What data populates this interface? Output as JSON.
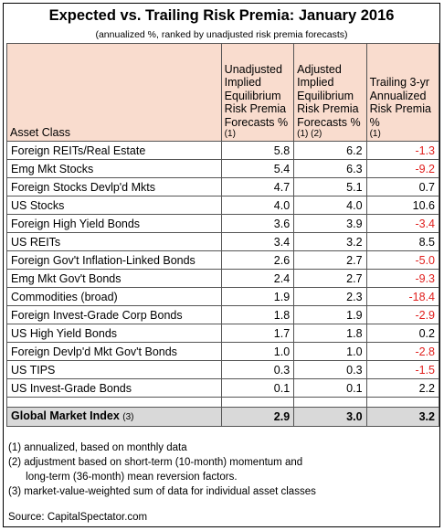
{
  "title": "Expected vs. Trailing Risk Premia: January 2016",
  "subtitle": "(annualized %, ranked by unadjusted risk premia forecasts)",
  "headers": {
    "asset_class": "Asset Class",
    "col1": "Unadjusted Implied Equilibrium Risk Premia Forecasts %",
    "col1_note": "(1)",
    "col2": "Adjusted Implied Equilibrium Risk Premia Forecasts %",
    "col2_note": "(1) (2)",
    "col3": "Trailing 3-yr Annualized Risk Premia %",
    "col3_note": "(1)"
  },
  "rows": [
    {
      "asset": "Foreign REITs/Real Estate",
      "unadj": "5.8",
      "adj": "6.2",
      "trailing": "-1.3"
    },
    {
      "asset": "Emg Mkt Stocks",
      "unadj": "5.4",
      "adj": "6.3",
      "trailing": "-9.2"
    },
    {
      "asset": "Foreign Stocks Devlp'd Mkts",
      "unadj": "4.7",
      "adj": "5.1",
      "trailing": "0.7"
    },
    {
      "asset": "US Stocks",
      "unadj": "4.0",
      "adj": "4.0",
      "trailing": "10.6"
    },
    {
      "asset": "Foreign High Yield Bonds",
      "unadj": "3.6",
      "adj": "3.9",
      "trailing": "-3.4"
    },
    {
      "asset": "US REITs",
      "unadj": "3.4",
      "adj": "3.2",
      "trailing": "8.5"
    },
    {
      "asset": "Foreign Gov't Inflation-Linked Bonds",
      "unadj": "2.6",
      "adj": "2.7",
      "trailing": "-5.0"
    },
    {
      "asset": "Emg Mkt Gov't Bonds",
      "unadj": "2.4",
      "adj": "2.7",
      "trailing": "-9.3"
    },
    {
      "asset": "Commodities (broad)",
      "unadj": "1.9",
      "adj": "2.3",
      "trailing": "-18.4"
    },
    {
      "asset": "Foreign Invest-Grade Corp Bonds",
      "unadj": "1.8",
      "adj": "1.9",
      "trailing": "-2.9"
    },
    {
      "asset": "US High Yield Bonds",
      "unadj": "1.7",
      "adj": "1.8",
      "trailing": "0.2"
    },
    {
      "asset": "Foreign Devlp'd Mkt Gov't Bonds",
      "unadj": "1.0",
      "adj": "1.0",
      "trailing": "-2.8"
    },
    {
      "asset": "US TIPS",
      "unadj": "0.3",
      "adj": "0.3",
      "trailing": "-1.5"
    },
    {
      "asset": "US Invest-Grade Bonds",
      "unadj": "0.1",
      "adj": "0.1",
      "trailing": "2.2"
    }
  ],
  "global": {
    "label": "Global Market Index",
    "note": "(3)",
    "unadj": "2.9",
    "adj": "3.0",
    "trailing": "3.2"
  },
  "notes": [
    "(1) annualized, based on monthly data",
    "(2) adjustment based on short-term (10-month) momentum and",
    "      long-term (36-month) mean reversion factors.",
    "(3) market-value-weighted sum of data for individual asset classes"
  ],
  "source": "Source:  CapitalSpectator.com",
  "colors": {
    "header_bg": "#f9dcce",
    "negative": "#e0201e",
    "total_bg": "#d9d9d9"
  }
}
